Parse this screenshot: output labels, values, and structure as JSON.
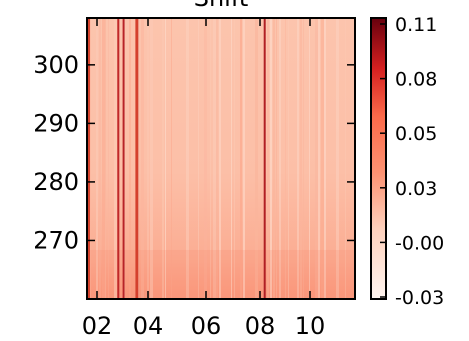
{
  "chart_data": {
    "type": "heatmap",
    "title": "Shift",
    "xlabel": "",
    "ylabel": "",
    "x_tick_labels": [
      "02",
      "04",
      "06",
      "08",
      "10"
    ],
    "y_tick_labels": [
      "300",
      "290",
      "280",
      "270"
    ],
    "y_tick_values": [
      300,
      290,
      280,
      270
    ],
    "ylim": [
      260,
      308
    ],
    "colormap": "Reds",
    "colorbar": {
      "tick_labels": [
        "0.11",
        "0.08",
        "0.05",
        "0.03",
        "-0.00",
        "-0.03"
      ],
      "vmin": -0.03,
      "vmax": 0.11
    },
    "colors": {
      "low": "#fff5f0",
      "mid_low": "#fcbba1",
      "mid": "#fb6a4a",
      "mid_high": "#cb181d",
      "high": "#67000d"
    },
    "dark_stripes_x": [
      "01.7",
      "02.8",
      "03.0",
      "03.5",
      "08.3"
    ]
  }
}
